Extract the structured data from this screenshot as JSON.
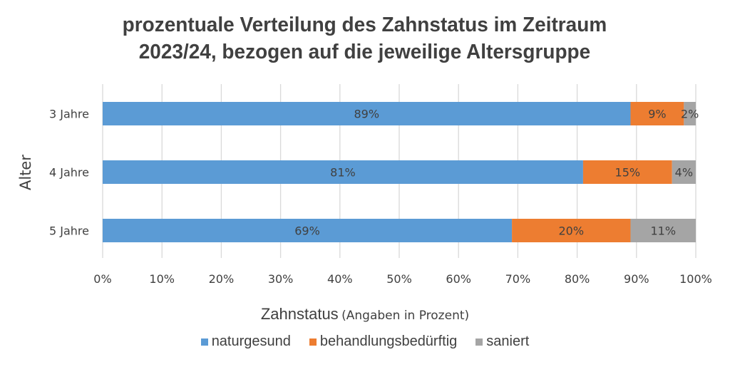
{
  "chart_data": {
    "type": "bar",
    "orientation": "horizontal",
    "stacked": true,
    "title": "prozentuale Verteilung des Zahnstatus im Zeitraum 2023/24, bezogen auf die jeweilige Altersgruppe",
    "title_lines": [
      "prozentuale Verteilung des Zahnstatus im Zeitraum",
      "2023/24, bezogen auf die jeweilige Altersgruppe"
    ],
    "xlabel": "Zahnstatus",
    "xlabel_sub": "(Angaben in Prozent)",
    "ylabel": "Alter",
    "categories": [
      "3 Jahre",
      "4 Jahre",
      "5 Jahre"
    ],
    "xlim": [
      0,
      100
    ],
    "xticks": [
      "0%",
      "10%",
      "20%",
      "30%",
      "40%",
      "50%",
      "60%",
      "70%",
      "80%",
      "90%",
      "100%"
    ],
    "grid": true,
    "legend_position": "bottom",
    "series": [
      {
        "name": "naturgesund",
        "color": "#5b9bd5",
        "values": [
          89,
          81,
          69
        ],
        "labels": [
          "89%",
          "81%",
          "69%"
        ]
      },
      {
        "name": "behandlungsbedürftig",
        "color": "#ed7d31",
        "values": [
          9,
          15,
          20
        ],
        "labels": [
          "9%",
          "15%",
          "20%"
        ]
      },
      {
        "name": "saniert",
        "color": "#a5a5a5",
        "values": [
          2,
          4,
          11
        ],
        "labels": [
          "2%",
          "4%",
          "11%"
        ]
      }
    ]
  }
}
